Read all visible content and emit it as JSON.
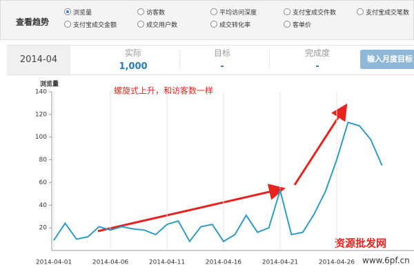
{
  "panel": {
    "label": "查看趋势",
    "options": [
      "浏览量",
      "访客数",
      "平均访问深度",
      "支付宝成交件数",
      "支付宝成交笔数",
      "支付宝成交金额",
      "成交用户数",
      "成交转化率",
      "客单价"
    ],
    "selected": 0
  },
  "summary": {
    "period": "2014-04",
    "actual_label": "实际",
    "actual": "1,000",
    "target_label": "目标",
    "target": "-",
    "completion_label": "完成度",
    "completion": "-",
    "button": "输入月度目标"
  },
  "chart_data": {
    "type": "line",
    "y_label": "浏览量",
    "annotation": "螺旋式上升，和访客数一样",
    "color": "#2e9ac4",
    "categories": [
      "2014-04-01",
      null,
      null,
      null,
      null,
      "2014-04-06",
      null,
      null,
      null,
      null,
      "2014-04-11",
      null,
      null,
      null,
      null,
      "2014-04-16",
      null,
      null,
      null,
      null,
      "2014-04-21",
      null,
      null,
      null,
      null,
      "2014-04-26",
      null,
      null,
      null,
      null
    ],
    "values": [
      9,
      24,
      10,
      12,
      21,
      18,
      21,
      19,
      18,
      14,
      23,
      26,
      8,
      21,
      23,
      8,
      14,
      31,
      16,
      20,
      53,
      14,
      16,
      32,
      52,
      80,
      113,
      110,
      98,
      75
    ],
    "ylim": [
      0,
      140
    ],
    "yticks": [
      20,
      40,
      60,
      80,
      100,
      120,
      140
    ]
  },
  "watermark": [
    "资源批发网",
    "www.6pf.cn"
  ]
}
